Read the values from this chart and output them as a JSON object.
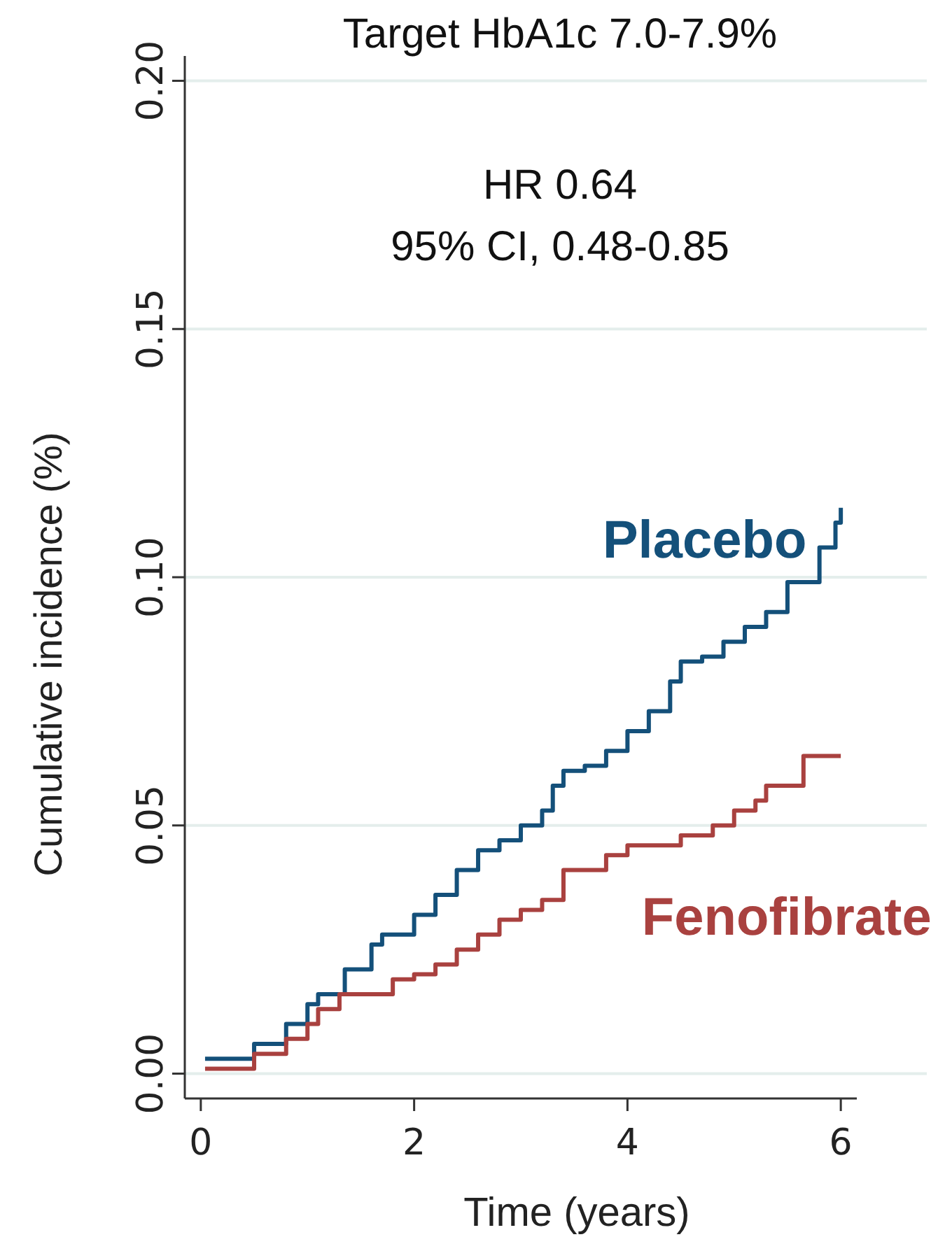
{
  "chart_data": {
    "type": "step",
    "title": "Target HbA1c 7.0-7.9%",
    "xlabel": "Time (years)",
    "ylabel": "Cumulative incidence  (%)",
    "annotations": [
      "HR 0.64",
      "95% CI, 0.48-0.85"
    ],
    "xlim": [
      -0.15,
      6.15
    ],
    "xticks": [
      0,
      2,
      4,
      6
    ],
    "ylim": [
      -0.005,
      0.205
    ],
    "yticks": [
      {
        "value": 0,
        "label": "0.00"
      },
      {
        "value": 0.05,
        "label": "0.05"
      },
      {
        "value": 0.1,
        "label": "0.10"
      },
      {
        "value": 0.15,
        "label": "0.15"
      },
      {
        "value": 0.2,
        "label": "0.20"
      }
    ],
    "grid": "y",
    "line_style": "solid",
    "marker": "none",
    "series": [
      {
        "name": "Placebo",
        "color": "#14507a",
        "x": [
          0.04,
          0.5,
          0.8,
          1.0,
          1.1,
          1.3,
          1.35,
          1.5,
          1.6,
          1.7,
          2.0,
          2.2,
          2.4,
          2.6,
          2.8,
          3.0,
          3.2,
          3.3,
          3.4,
          3.6,
          3.8,
          4.0,
          4.2,
          4.4,
          4.5,
          4.7,
          4.9,
          5.1,
          5.3,
          5.5,
          5.7,
          5.8,
          5.95,
          6.0
        ],
        "values": [
          0.003,
          0.006,
          0.01,
          0.014,
          0.016,
          0.016,
          0.021,
          0.021,
          0.026,
          0.028,
          0.032,
          0.036,
          0.041,
          0.045,
          0.047,
          0.05,
          0.053,
          0.058,
          0.061,
          0.062,
          0.065,
          0.069,
          0.073,
          0.079,
          0.083,
          0.084,
          0.087,
          0.09,
          0.093,
          0.099,
          0.099,
          0.106,
          0.111,
          0.114
        ]
      },
      {
        "name": "Fenofibrate",
        "color": "#a9413f",
        "x": [
          0.04,
          0.4,
          0.5,
          0.8,
          1.0,
          1.1,
          1.3,
          1.6,
          1.8,
          2.0,
          2.2,
          2.4,
          2.6,
          2.8,
          3.0,
          3.2,
          3.4,
          3.6,
          3.8,
          4.0,
          4.3,
          4.5,
          4.8,
          5.0,
          5.2,
          5.3,
          5.6,
          5.65,
          6.0
        ],
        "values": [
          0.001,
          0.001,
          0.004,
          0.007,
          0.01,
          0.013,
          0.016,
          0.016,
          0.019,
          0.02,
          0.022,
          0.025,
          0.028,
          0.031,
          0.033,
          0.035,
          0.041,
          0.041,
          0.044,
          0.046,
          0.046,
          0.048,
          0.05,
          0.053,
          0.055,
          0.058,
          0.058,
          0.064,
          0.064
        ]
      }
    ]
  }
}
